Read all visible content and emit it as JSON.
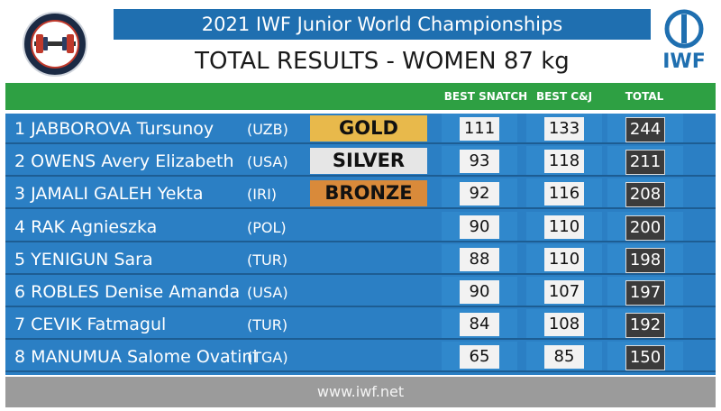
{
  "header": {
    "event": "2021 IWF Junior World Championships",
    "title": "TOTAL RESULTS - WOMEN 87 kg",
    "brand": "IWF"
  },
  "columns": {
    "snatch": "BEST SNATCH",
    "cj": "BEST C&J",
    "total": "TOTAL"
  },
  "colors": {
    "gold": "#e8b94b",
    "silver": "#e6e6e6",
    "bronze": "#d98a3a",
    "row_blue": "#2b7fc4",
    "header_green": "#2ea043",
    "band_blue": "#1f6fb0"
  },
  "rows": [
    {
      "name": "1 JABBOROVA Tursunoy",
      "nat": "(UZB)",
      "medal": "GOLD",
      "snatch": "111",
      "cj": "133",
      "total": "244"
    },
    {
      "name": "2 OWENS Avery Elizabeth",
      "nat": "(USA)",
      "medal": "SILVER",
      "snatch": "93",
      "cj": "118",
      "total": "211"
    },
    {
      "name": "3 JAMALI GALEH Yekta",
      "nat": "(IRI)",
      "medal": "BRONZE",
      "snatch": "92",
      "cj": "116",
      "total": "208"
    },
    {
      "name": "4 RAK Agnieszka",
      "nat": "(POL)",
      "medal": "",
      "snatch": "90",
      "cj": "110",
      "total": "200"
    },
    {
      "name": "5 YENIGUN Sara",
      "nat": "(TUR)",
      "medal": "",
      "snatch": "88",
      "cj": "110",
      "total": "198"
    },
    {
      "name": "6 ROBLES Denise Amanda",
      "nat": "(USA)",
      "medal": "",
      "snatch": "90",
      "cj": "107",
      "total": "197"
    },
    {
      "name": "7 CEVIK Fatmagul",
      "nat": "(TUR)",
      "medal": "",
      "snatch": "84",
      "cj": "108",
      "total": "192"
    },
    {
      "name": "8 MANUMUA Salome Ovatini",
      "nat": "(TGA)",
      "medal": "",
      "snatch": "65",
      "cj": "85",
      "total": "150"
    }
  ],
  "footer": {
    "url": "www.iwf.net"
  }
}
